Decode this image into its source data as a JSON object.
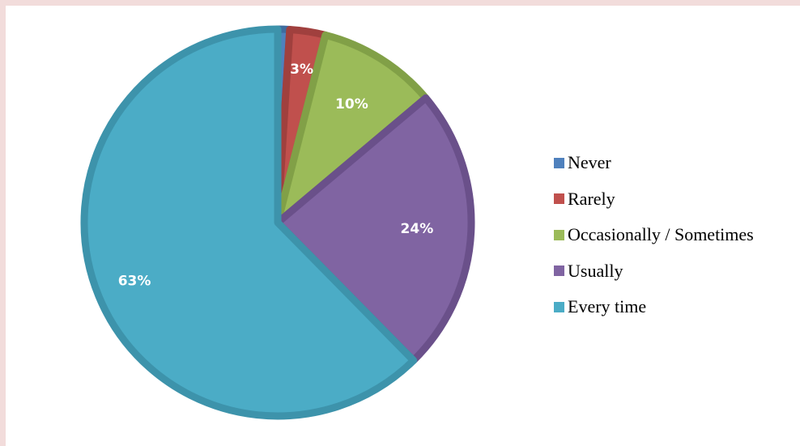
{
  "chart_data": {
    "type": "pie",
    "title": "",
    "slices": [
      {
        "label": "Never",
        "value": 1,
        "display": "",
        "color": "#4f81bd",
        "edge": "#3f6c9f"
      },
      {
        "label": "Rarely",
        "value": 3,
        "display": "3%",
        "color": "#c0504d",
        "edge": "#a0403e"
      },
      {
        "label": "Occasionally / Sometimes",
        "value": 10,
        "display": "10%",
        "color": "#9bbb59",
        "edge": "#81a047"
      },
      {
        "label": "Usually",
        "value": 24,
        "display": "24%",
        "color": "#8064a2",
        "edge": "#6a508a"
      },
      {
        "label": "Every time",
        "value": 63,
        "display": "63%",
        "color": "#4bacc6",
        "edge": "#3d93ab"
      }
    ],
    "legend": {
      "position": "right"
    }
  }
}
